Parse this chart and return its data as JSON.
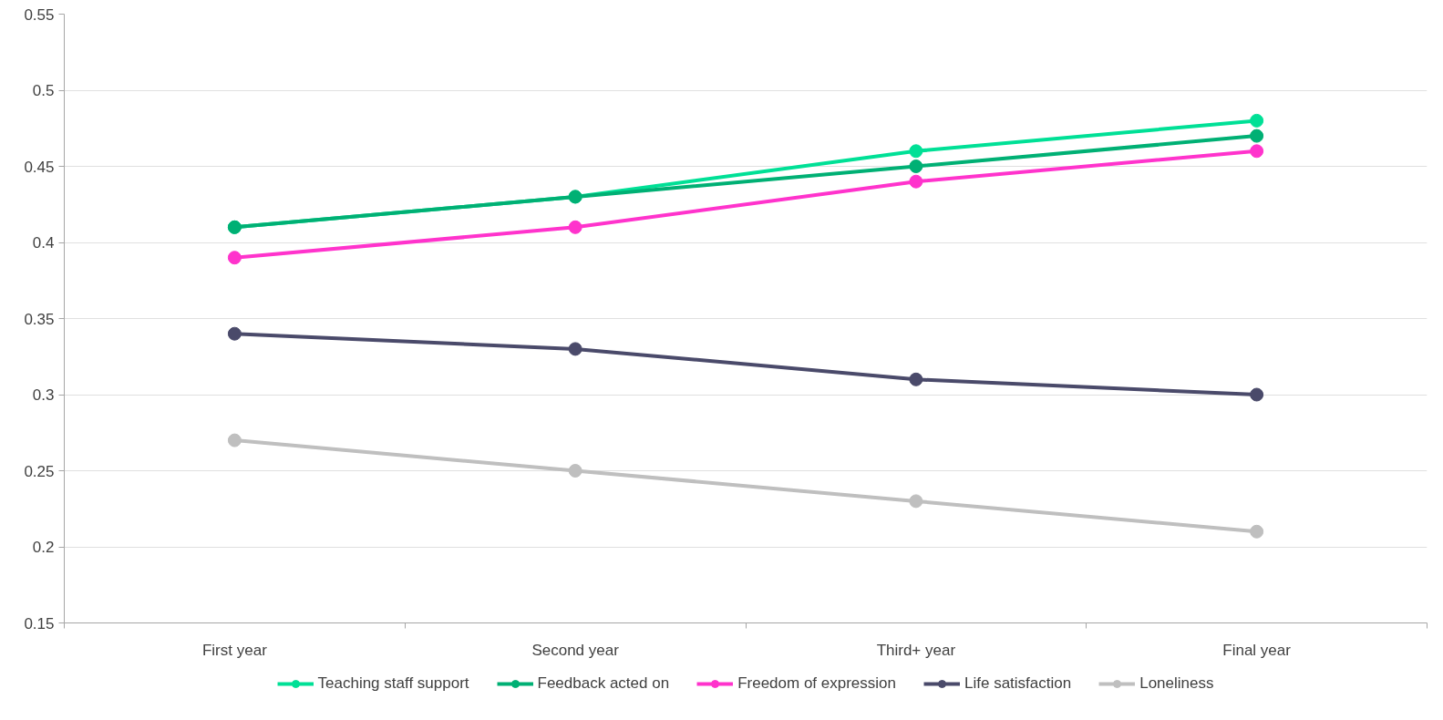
{
  "chart_data": {
    "type": "line",
    "categories": [
      "First year",
      "Second year",
      "Third+ year",
      "Final year"
    ],
    "series": [
      {
        "name": "Teaching staff support",
        "color": "#00e096",
        "values": [
          0.41,
          0.43,
          0.46,
          0.48
        ]
      },
      {
        "name": "Feedback acted on",
        "color": "#00b074",
        "values": [
          0.41,
          0.43,
          0.45,
          0.47
        ]
      },
      {
        "name": "Freedom of expression",
        "color": "#ff33cc",
        "values": [
          0.39,
          0.41,
          0.44,
          0.46
        ]
      },
      {
        "name": "Life satisfaction",
        "color": "#4a4a6a",
        "values": [
          0.34,
          0.33,
          0.31,
          0.3
        ]
      },
      {
        "name": "Loneliness",
        "color": "#bfbfbf",
        "values": [
          0.27,
          0.25,
          0.23,
          0.21
        ]
      }
    ],
    "ylim": [
      0.15,
      0.55
    ],
    "yticks": [
      0.15,
      0.2,
      0.25,
      0.3,
      0.35,
      0.4,
      0.45,
      0.5,
      0.55
    ],
    "grid": "y",
    "legend": "bottom",
    "marker": "circle",
    "line_style": "solid"
  }
}
